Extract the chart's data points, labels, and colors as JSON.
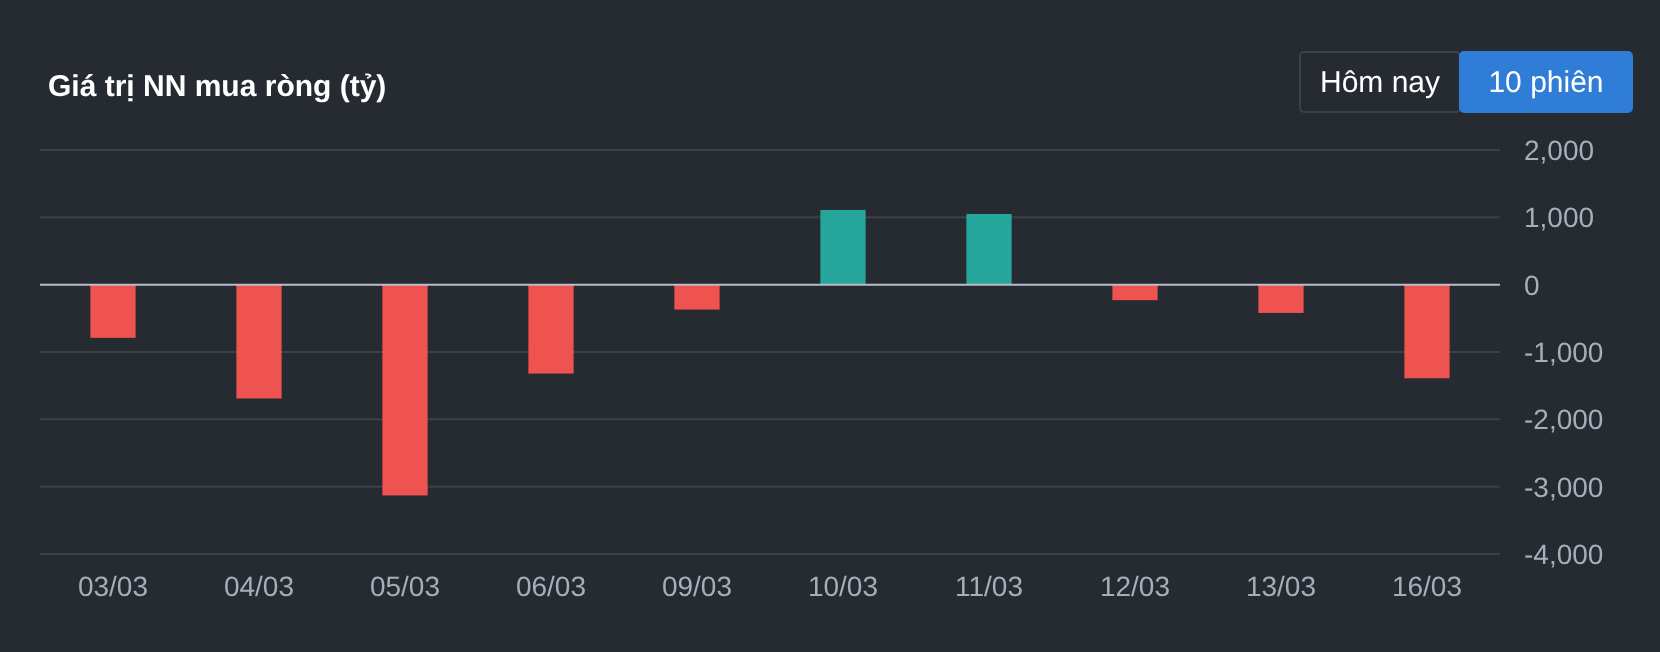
{
  "chart_data": {
    "type": "bar",
    "title": "Giá trị NN mua ròng (tỷ)",
    "categories": [
      "03/03",
      "04/03",
      "05/03",
      "06/03",
      "09/03",
      "10/03",
      "11/03",
      "12/03",
      "13/03",
      "16/03"
    ],
    "values": [
      -790,
      -1690,
      -3130,
      -1320,
      -370,
      1110,
      1050,
      -230,
      -420,
      -1390
    ],
    "colors": [
      "#ef5350",
      "#ef5350",
      "#ef5350",
      "#ef5350",
      "#ef5350",
      "#26a69a",
      "#26a69a",
      "#ef5350",
      "#ef5350",
      "#ef5350"
    ],
    "ylim": [
      -4000,
      2000
    ],
    "yticks": [
      {
        "value": 2000,
        "label": "2,000"
      },
      {
        "value": 1000,
        "label": "1,000"
      },
      0,
      {
        "value": -1000,
        "label": "-1,000"
      },
      {
        "value": -2000,
        "label": "-2,000"
      },
      {
        "value": -3000,
        "label": "-3,000"
      },
      {
        "value": -4000,
        "label": "-4,000"
      }
    ],
    "grid": "y",
    "annotations": [
      "Hôm nay",
      "10 phiên"
    ]
  }
}
